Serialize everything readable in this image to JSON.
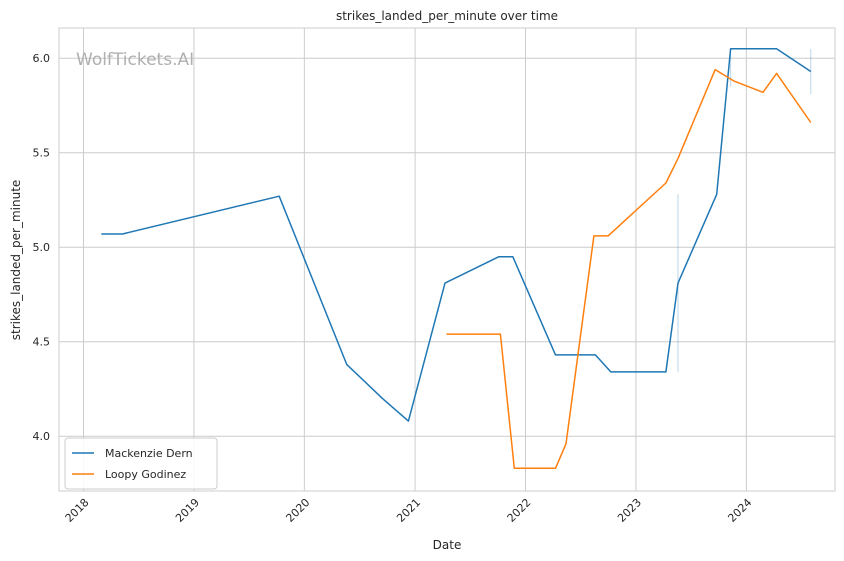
{
  "chart_data": {
    "type": "line",
    "title": "strikes_landed_per_minute over time",
    "xlabel": "Date",
    "ylabel": "strikes_landed_per_minute",
    "watermark": "WolfTickets.AI",
    "xlim": [
      "2017-10-12",
      "2024-10-20"
    ],
    "ylim": [
      3.71,
      6.16
    ],
    "x_ticks": [
      "2018",
      "2019",
      "2020",
      "2021",
      "2022",
      "2023",
      "2024"
    ],
    "y_ticks": [
      "4.0",
      "4.5",
      "5.0",
      "5.5",
      "6.0"
    ],
    "grid": true,
    "legend_position": "lower-left",
    "series": [
      {
        "name": "Mackenzie Dern",
        "color": "#1f77b4",
        "points": [
          [
            "2018-03-01",
            5.07
          ],
          [
            "2018-05-10",
            5.07
          ],
          [
            "2019-10-10",
            5.27
          ],
          [
            "2020-05-20",
            4.38
          ],
          [
            "2020-09-15",
            4.2
          ],
          [
            "2020-12-10",
            4.08
          ],
          [
            "2021-04-10",
            4.81
          ],
          [
            "2021-10-05",
            4.95
          ],
          [
            "2021-11-20",
            4.95
          ],
          [
            "2022-04-10",
            4.43
          ],
          [
            "2022-08-20",
            4.43
          ],
          [
            "2022-10-10",
            4.34
          ],
          [
            "2023-04-10",
            4.34
          ],
          [
            "2023-05-20",
            4.81
          ],
          [
            "2023-09-25",
            5.28
          ],
          [
            "2023-11-10",
            6.05
          ],
          [
            "2024-04-10",
            6.05
          ],
          [
            "2024-08-01",
            5.93
          ]
        ],
        "error_bars": [
          {
            "x": "2023-05-20",
            "low": 4.34,
            "high": 5.28
          },
          {
            "x": "2023-11-10",
            "low": 5.85,
            "high": 6.05
          },
          {
            "x": "2024-08-01",
            "low": 5.81,
            "high": 6.05
          }
        ]
      },
      {
        "name": "Loopy Godinez",
        "color": "#ff7f0e",
        "points": [
          [
            "2021-04-15",
            4.54
          ],
          [
            "2021-10-10",
            4.54
          ],
          [
            "2021-11-25",
            3.83
          ],
          [
            "2022-04-10",
            3.83
          ],
          [
            "2022-05-15",
            3.96
          ],
          [
            "2022-08-15",
            5.06
          ],
          [
            "2022-10-01",
            5.06
          ],
          [
            "2023-04-10",
            5.34
          ],
          [
            "2023-05-20",
            5.47
          ],
          [
            "2023-09-20",
            5.94
          ],
          [
            "2023-11-20",
            5.88
          ],
          [
            "2024-02-25",
            5.82
          ],
          [
            "2024-04-10",
            5.92
          ],
          [
            "2024-08-01",
            5.66
          ]
        ]
      }
    ]
  }
}
